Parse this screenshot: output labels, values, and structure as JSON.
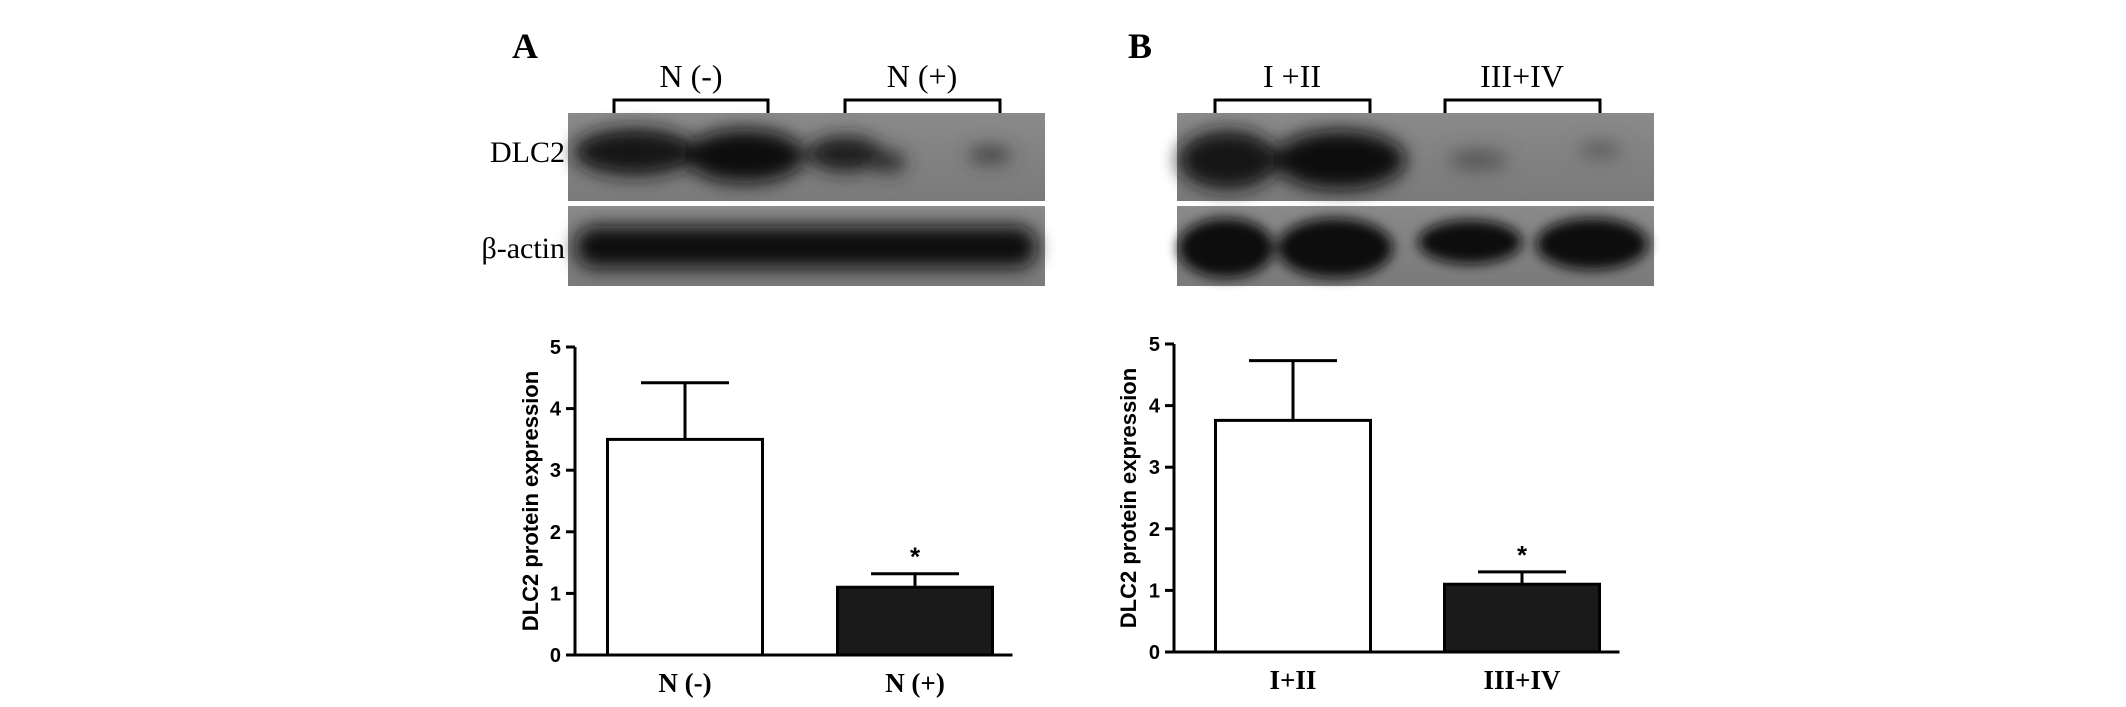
{
  "panels": [
    {
      "letter": "A",
      "blot": {
        "group_labels": [
          "N (-)",
          "N (+)"
        ],
        "row_labels": [
          "DLC2",
          "β-actin"
        ]
      }
    },
    {
      "letter": "B",
      "blot": {
        "group_labels": [
          "I +II",
          "III+IV"
        ],
        "row_labels": []
      }
    }
  ],
  "chart_data": [
    {
      "type": "bar",
      "categories": [
        "N (-)",
        "N (+)"
      ],
      "values": [
        3.5,
        1.1
      ],
      "errors": [
        0.92,
        0.22
      ],
      "bar_fills": [
        "#ffffff",
        "#1a1a1a"
      ],
      "significance": [
        "",
        "*"
      ],
      "title": "",
      "xlabel": "",
      "ylabel": "DLC2 protein expression",
      "ylim": [
        0,
        5
      ],
      "yticks": [
        "0",
        "1",
        "2",
        "3",
        "4",
        "5"
      ],
      "grid": false
    },
    {
      "type": "bar",
      "categories": [
        "I+II",
        "III+IV"
      ],
      "values": [
        3.76,
        1.1
      ],
      "errors": [
        0.97,
        0.2
      ],
      "bar_fills": [
        "#ffffff",
        "#1a1a1a"
      ],
      "significance": [
        "",
        "*"
      ],
      "title": "",
      "xlabel": "",
      "ylabel": "DLC2 protein expression",
      "ylim": [
        0,
        5
      ],
      "yticks": [
        "0",
        "1",
        "2",
        "3",
        "4",
        "5"
      ],
      "grid": false
    }
  ]
}
